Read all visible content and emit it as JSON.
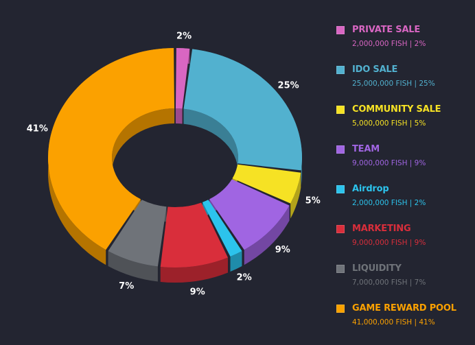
{
  "chart_data": {
    "type": "pie",
    "subtype": "3d-donut",
    "unit": "FISH",
    "slices": [
      {
        "name": "PRIVATE SALE",
        "percent": 2,
        "amount": 2000000,
        "label": "2%",
        "detail": "2,000,000 FISH | 2%",
        "color": "#d866c2",
        "side": "#9c4a8c"
      },
      {
        "name": "IDO SALE",
        "percent": 25,
        "amount": 25000000,
        "label": "25%",
        "detail": "25,000,000 FISH | 25%",
        "color": "#52b1cf",
        "side": "#3a7f95"
      },
      {
        "name": "COMMUNITY SALE",
        "percent": 5,
        "amount": 5000000,
        "label": "5%",
        "detail": "5,000,000 FISH | 5%",
        "color": "#f6e224",
        "side": "#b3a31a"
      },
      {
        "name": "TEAM",
        "percent": 9,
        "amount": 9000000,
        "label": "9%",
        "detail": "9,000,000 FISH | 9%",
        "color": "#a065e2",
        "side": "#7347a3"
      },
      {
        "name": "Airdrop",
        "percent": 2,
        "amount": 2000000,
        "label": "2%",
        "detail": "2,000,000 FISH | 2%",
        "color": "#2cc3ec",
        "side": "#1f8caa"
      },
      {
        "name": "MARKETING",
        "percent": 9,
        "amount": 9000000,
        "label": "9%",
        "detail": "9,000,000 FISH | 9%",
        "color": "#d92e3b",
        "side": "#9c212a"
      },
      {
        "name": "LIQUIDITY",
        "percent": 7,
        "amount": 7000000,
        "label": "7%",
        "detail": "7,000,000 FISH | 7%",
        "color": "#6f7379",
        "side": "#4f5257"
      },
      {
        "name": "GAME REWARD POOL",
        "percent": 41,
        "amount": 41000000,
        "label": "41%",
        "detail": "41,000,000 FISH | 41%",
        "color": "#fba100",
        "side": "#b57400"
      }
    ]
  }
}
